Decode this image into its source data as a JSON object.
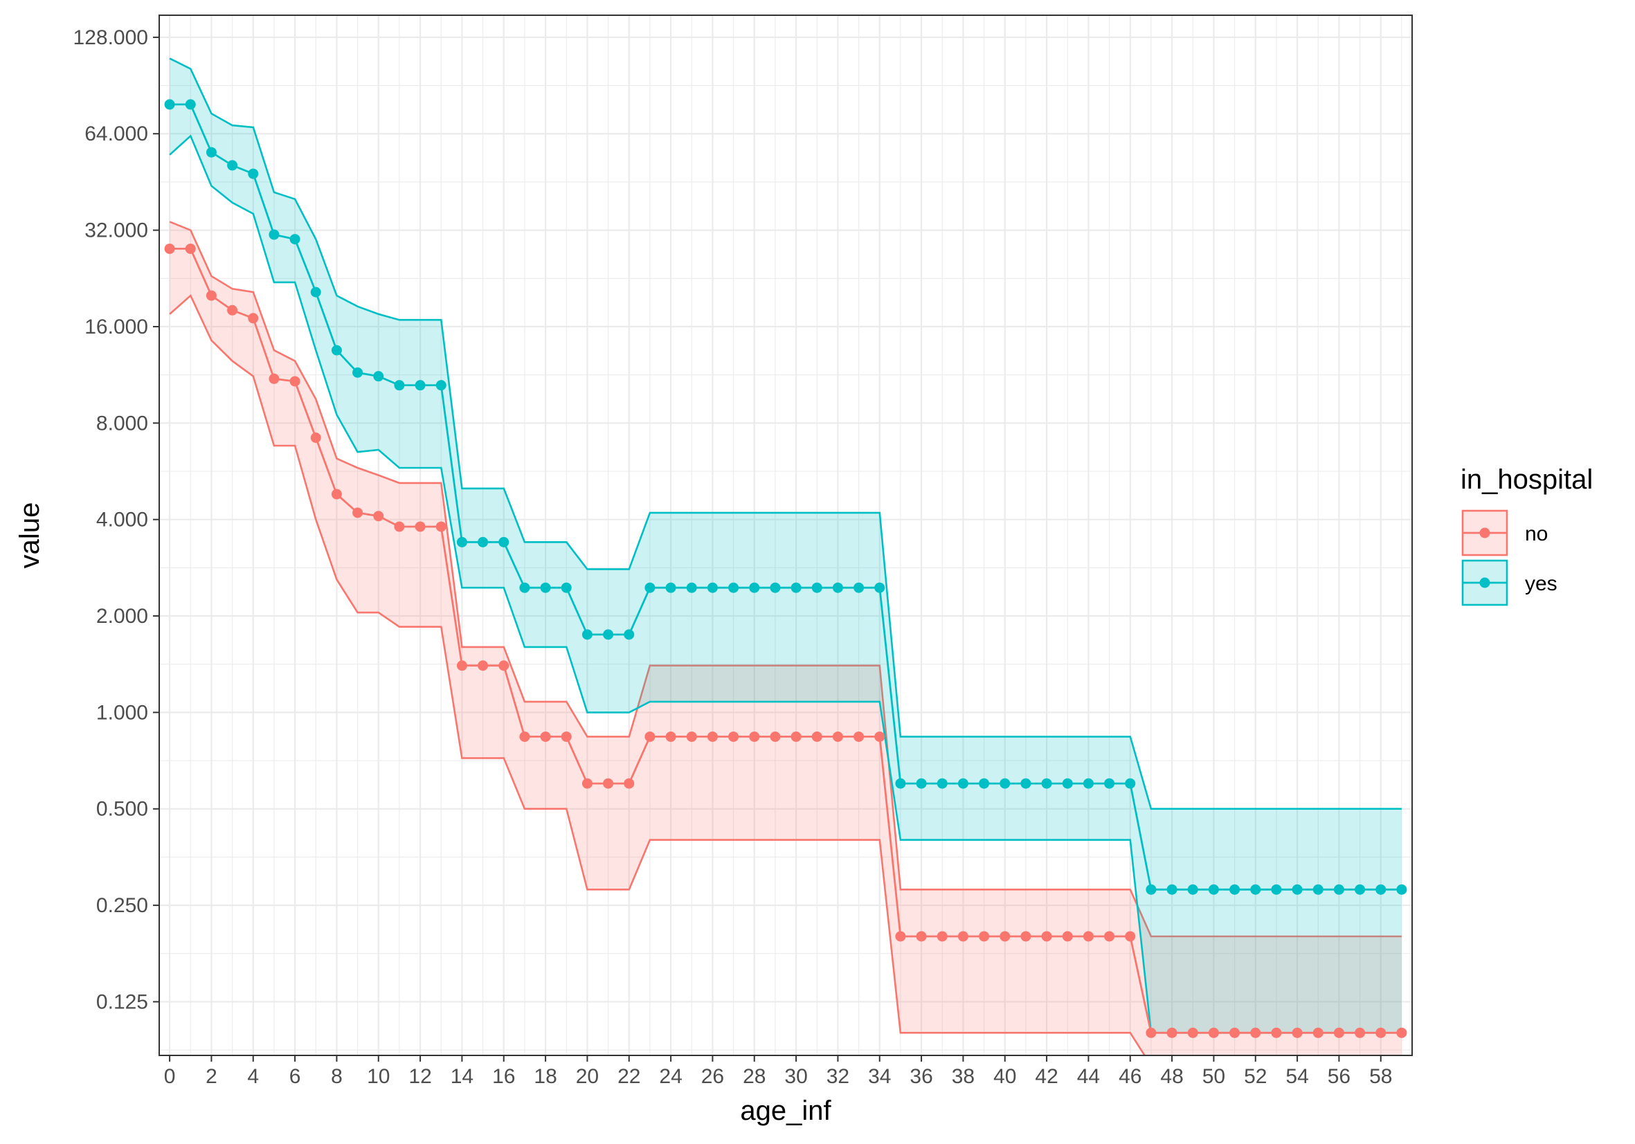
{
  "chart_data": {
    "type": "line",
    "xlabel": "age_inf",
    "ylabel": "value",
    "y_scale": "log2",
    "xlim": [
      -0.5,
      59.5
    ],
    "ylim": [
      0.085,
      150
    ],
    "grid": true,
    "legend_placement": "right",
    "x_ticks": [
      0,
      2,
      4,
      6,
      8,
      10,
      12,
      14,
      16,
      18,
      20,
      22,
      24,
      26,
      28,
      30,
      32,
      34,
      36,
      38,
      40,
      42,
      44,
      46,
      48,
      50,
      52,
      54,
      56,
      58
    ],
    "y_ticks": [
      0.125,
      0.25,
      0.5,
      1,
      2,
      4,
      8,
      16,
      32,
      64,
      128
    ],
    "y_tick_labels": [
      "0.125",
      "0.250",
      "0.500",
      "1.000",
      "2.000",
      "4.000",
      "8.000",
      "16.000",
      "32.000",
      "64.000",
      "128.000"
    ],
    "legend": {
      "title": "in_hospital",
      "entries": [
        "no",
        "yes"
      ]
    },
    "colors": {
      "no": "#F8766D",
      "yes": "#00BFC4"
    },
    "x": [
      0,
      1,
      2,
      3,
      4,
      5,
      6,
      7,
      8,
      9,
      10,
      11,
      12,
      13,
      14,
      15,
      16,
      17,
      18,
      19,
      20,
      21,
      22,
      23,
      24,
      25,
      26,
      27,
      28,
      29,
      30,
      31,
      32,
      33,
      34,
      35,
      36,
      37,
      38,
      39,
      40,
      41,
      42,
      43,
      44,
      45,
      46,
      47,
      48,
      49,
      50,
      51,
      52,
      53,
      54,
      55,
      56,
      57,
      58,
      59
    ],
    "series": [
      {
        "name": "no",
        "color": "#F8766D",
        "values": [
          28,
          28,
          20,
          18,
          17,
          11,
          10.8,
          7.2,
          4.8,
          4.2,
          4.1,
          3.8,
          3.8,
          3.8,
          1.4,
          1.4,
          1.4,
          0.84,
          0.84,
          0.84,
          0.6,
          0.6,
          0.6,
          0.84,
          0.84,
          0.84,
          0.84,
          0.84,
          0.84,
          0.84,
          0.84,
          0.84,
          0.84,
          0.84,
          0.84,
          0.2,
          0.2,
          0.2,
          0.2,
          0.2,
          0.2,
          0.2,
          0.2,
          0.2,
          0.2,
          0.2,
          0.2,
          0.1,
          0.1,
          0.1,
          0.1,
          0.1,
          0.1,
          0.1,
          0.1,
          0.1,
          0.1,
          0.1,
          0.1,
          0.1
        ],
        "upper": [
          34,
          32,
          23,
          21,
          20.5,
          13.5,
          12.5,
          9.5,
          6.2,
          5.8,
          5.5,
          5.2,
          5.2,
          5.2,
          1.6,
          1.6,
          1.6,
          1.08,
          1.08,
          1.08,
          0.84,
          0.84,
          0.84,
          1.4,
          1.4,
          1.4,
          1.4,
          1.4,
          1.4,
          1.4,
          1.4,
          1.4,
          1.4,
          1.4,
          1.4,
          0.28,
          0.28,
          0.28,
          0.28,
          0.28,
          0.28,
          0.28,
          0.28,
          0.28,
          0.28,
          0.28,
          0.28,
          0.2,
          0.2,
          0.2,
          0.2,
          0.2,
          0.2,
          0.2,
          0.2,
          0.2,
          0.2,
          0.2,
          0.2,
          0.2
        ],
        "lower": [
          17.5,
          20,
          14.5,
          12.5,
          11.2,
          6.8,
          6.8,
          4,
          2.6,
          2.05,
          2.05,
          1.85,
          1.85,
          1.85,
          0.72,
          0.72,
          0.72,
          0.5,
          0.5,
          0.5,
          0.28,
          0.28,
          0.28,
          0.4,
          0.4,
          0.4,
          0.4,
          0.4,
          0.4,
          0.4,
          0.4,
          0.4,
          0.4,
          0.4,
          0.4,
          0.1,
          0.1,
          0.1,
          0.1,
          0.1,
          0.1,
          0.1,
          0.1,
          0.1,
          0.1,
          0.1,
          0.1,
          0.079,
          0.079,
          0.079,
          0.079,
          0.079,
          0.079,
          0.079,
          0.079,
          0.079,
          0.079,
          0.079,
          0.079,
          0.079
        ]
      },
      {
        "name": "yes",
        "color": "#00BFC4",
        "values": [
          79,
          79,
          56,
          51,
          48,
          31,
          30,
          20.5,
          13.5,
          11.5,
          11.2,
          10.5,
          10.5,
          10.5,
          3.4,
          3.4,
          3.4,
          2.45,
          2.45,
          2.45,
          1.75,
          1.75,
          1.75,
          2.45,
          2.45,
          2.45,
          2.45,
          2.45,
          2.45,
          2.45,
          2.45,
          2.45,
          2.45,
          2.45,
          2.45,
          0.6,
          0.6,
          0.6,
          0.6,
          0.6,
          0.6,
          0.6,
          0.6,
          0.6,
          0.6,
          0.6,
          0.6,
          0.28,
          0.28,
          0.28,
          0.28,
          0.28,
          0.28,
          0.28,
          0.28,
          0.28,
          0.28,
          0.28,
          0.28,
          0.28
        ],
        "upper": [
          110,
          102,
          74,
          68,
          67,
          42,
          40,
          30,
          20,
          18.5,
          17.5,
          16.8,
          16.8,
          16.8,
          5,
          5,
          5,
          3.4,
          3.4,
          3.4,
          2.8,
          2.8,
          2.8,
          4.2,
          4.2,
          4.2,
          4.2,
          4.2,
          4.2,
          4.2,
          4.2,
          4.2,
          4.2,
          4.2,
          4.2,
          0.84,
          0.84,
          0.84,
          0.84,
          0.84,
          0.84,
          0.84,
          0.84,
          0.84,
          0.84,
          0.84,
          0.84,
          0.5,
          0.5,
          0.5,
          0.5,
          0.5,
          0.5,
          0.5,
          0.5,
          0.5,
          0.5,
          0.5,
          0.5,
          0.5
        ],
        "lower": [
          55,
          63,
          44,
          39,
          36,
          22,
          22,
          13.5,
          8.5,
          6.5,
          6.6,
          5.8,
          5.8,
          5.8,
          2.45,
          2.45,
          2.45,
          1.6,
          1.6,
          1.6,
          1,
          1,
          1,
          1.08,
          1.08,
          1.08,
          1.08,
          1.08,
          1.08,
          1.08,
          1.08,
          1.08,
          1.08,
          1.08,
          1.08,
          0.4,
          0.4,
          0.4,
          0.4,
          0.4,
          0.4,
          0.4,
          0.4,
          0.4,
          0.4,
          0.4,
          0.4,
          0.1,
          0.1,
          0.1,
          0.1,
          0.1,
          0.1,
          0.1,
          0.1,
          0.1,
          0.1,
          0.1,
          0.1,
          0.1
        ]
      }
    ]
  }
}
